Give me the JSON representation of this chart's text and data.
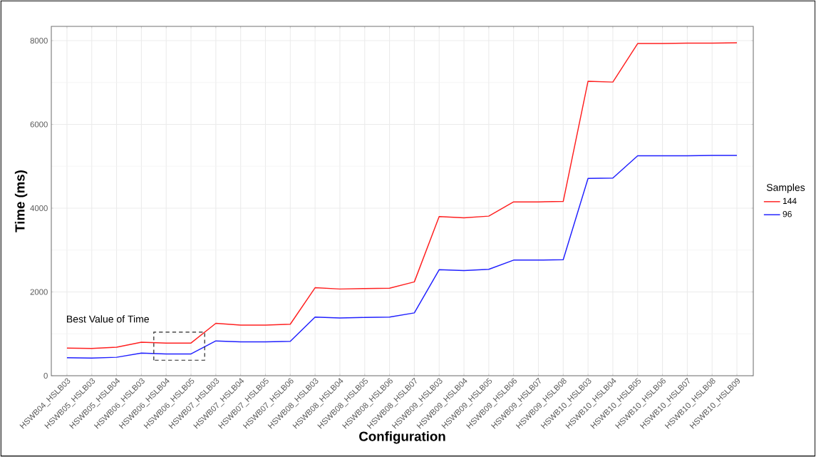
{
  "chart_data": {
    "type": "line",
    "xlabel": "Configuration",
    "ylabel": "Time (ms)",
    "legend_title": "Samples",
    "categories": [
      "HSWB04_HSLB03",
      "HSWB05_HSLB03",
      "HSWB05_HSLB04",
      "HSWB06_HSLB03",
      "HSWB06_HSLB04",
      "HSWB06_HSLB05",
      "HSWB07_HSLB03",
      "HSWB07_HSLB04",
      "HSWB07_HSLB05",
      "HSWB07_HSLB06",
      "HSWB08_HSLB03",
      "HSWB08_HSLB04",
      "HSWB08_HSLB05",
      "HSWB08_HSLB06",
      "HSWB08_HSLB07",
      "HSWB09_HSLB03",
      "HSWB09_HSLB04",
      "HSWB09_HSLB05",
      "HSWB09_HSLB06",
      "HSWB09_HSLB07",
      "HSWB09_HSLB08",
      "HSWB10_HSLB03",
      "HSWB10_HSLB04",
      "HSWB10_HSLB05",
      "HSWB10_HSLB06",
      "HSWB10_HSLB07",
      "HSWB10_HSLB08",
      "HSWB10_HSLB09"
    ],
    "series": [
      {
        "name": "144",
        "color": "#ff2020",
        "values": [
          660,
          650,
          680,
          800,
          780,
          780,
          1250,
          1210,
          1210,
          1230,
          2100,
          2070,
          2080,
          2090,
          2240,
          3800,
          3770,
          3810,
          4150,
          4150,
          4160,
          7030,
          7010,
          7930,
          7930,
          7940,
          7940,
          7950
        ]
      },
      {
        "name": "96",
        "color": "#2020ff",
        "values": [
          430,
          420,
          440,
          540,
          520,
          520,
          830,
          810,
          810,
          820,
          1400,
          1380,
          1390,
          1400,
          1500,
          2530,
          2510,
          2540,
          2760,
          2760,
          2770,
          4710,
          4720,
          5250,
          5250,
          5250,
          5260,
          5260
        ]
      }
    ],
    "ylim": [
      0,
      8340
    ],
    "yticks": [
      0,
      2000,
      4000,
      6000,
      8000
    ],
    "annotations": [
      "Best Value of Time"
    ],
    "grid": true,
    "legend": "right",
    "marker": "none",
    "line_style": "solid"
  }
}
